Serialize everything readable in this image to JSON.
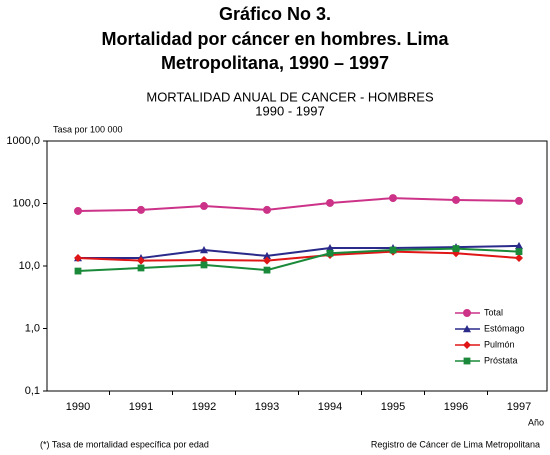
{
  "chart_data": {
    "type": "line",
    "title": [
      "Gráfico No 3.",
      "Mortalidad por cáncer en hombres. Lima",
      "Metropolitana, 1990 – 1997"
    ],
    "subtitle": [
      "MORTALIDAD ANUAL DE CANCER - HOMBRES",
      "1990 - 1997"
    ],
    "y_label": "Tasa por 100 000",
    "x_label": "Año",
    "notes": [
      "(*) Tasa de mortalidad específica por edad",
      "Registro de Cáncer de Lima Metropolitana"
    ],
    "categories": [
      "1990",
      "1991",
      "1992",
      "1993",
      "1994",
      "1995",
      "1996",
      "1997"
    ],
    "log_scale": true,
    "grid": false,
    "legend": "lower-right",
    "ylim": [
      0.1,
      1000
    ],
    "yticks": [
      {
        "value": 1000,
        "label": "1000,0"
      },
      {
        "value": 100,
        "label": "100,0"
      },
      {
        "value": 10,
        "label": "10,0"
      },
      {
        "value": 1,
        "label": "1,0"
      },
      {
        "value": 0.1,
        "label": "0,1"
      }
    ],
    "series": [
      {
        "name": "Total",
        "color": "#cc3388",
        "marker": "circle",
        "values": [
          76,
          79,
          91,
          79,
          102,
          122,
          114,
          110
        ]
      },
      {
        "name": "Estómago",
        "color": "#2a2a8a",
        "marker": "triangle",
        "values": [
          13.4,
          13.4,
          18,
          14.5,
          19.4,
          19.4,
          20,
          21
        ]
      },
      {
        "name": "Pulmón",
        "color": "#e01515",
        "marker": "diamond",
        "values": [
          13.4,
          12.2,
          12.5,
          12.2,
          15,
          17,
          16,
          13.4
        ]
      },
      {
        "name": "Próstata",
        "color": "#1a8a3a",
        "marker": "square",
        "values": [
          8.3,
          9.3,
          10.4,
          8.6,
          16,
          18,
          19,
          17
        ]
      }
    ]
  }
}
